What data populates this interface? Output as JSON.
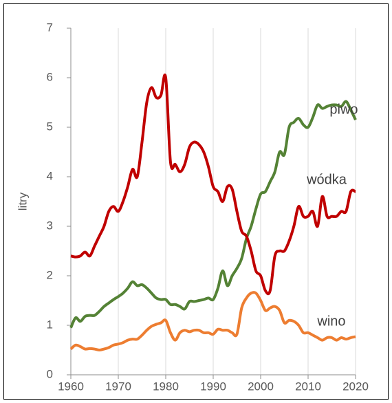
{
  "chart_data": {
    "type": "line",
    "y_label": "litry",
    "x": [
      1960,
      1961,
      1962,
      1963,
      1964,
      1965,
      1966,
      1967,
      1968,
      1969,
      1970,
      1971,
      1972,
      1973,
      1974,
      1975,
      1976,
      1977,
      1978,
      1979,
      1980,
      1981,
      1982,
      1983,
      1984,
      1985,
      1986,
      1987,
      1988,
      1989,
      1990,
      1991,
      1992,
      1993,
      1994,
      1995,
      1996,
      1997,
      1998,
      1999,
      2000,
      2001,
      2002,
      2003,
      2004,
      2005,
      2006,
      2007,
      2008,
      2009,
      2010,
      2011,
      2012,
      2013,
      2014,
      2015,
      2016,
      2017,
      2018,
      2019,
      2020
    ],
    "xlim": [
      1960,
      2020
    ],
    "xticks": [
      1960,
      1970,
      1980,
      1990,
      2000,
      2010,
      2020
    ],
    "ylim": [
      0,
      7
    ],
    "yticks": [
      0,
      1,
      2,
      3,
      4,
      5,
      6,
      7
    ],
    "grid": "x",
    "series": [
      {
        "name": "piwo",
        "color": "#548235",
        "values": [
          0.95,
          1.15,
          1.08,
          1.18,
          1.2,
          1.2,
          1.28,
          1.38,
          1.45,
          1.52,
          1.58,
          1.65,
          1.75,
          1.88,
          1.8,
          1.82,
          1.75,
          1.65,
          1.55,
          1.52,
          1.52,
          1.42,
          1.42,
          1.38,
          1.33,
          1.48,
          1.48,
          1.5,
          1.52,
          1.55,
          1.52,
          1.75,
          2.1,
          1.8,
          2.0,
          2.15,
          2.35,
          2.75,
          3.0,
          3.35,
          3.65,
          3.7,
          3.9,
          4.1,
          4.5,
          4.45,
          5.0,
          5.1,
          5.18,
          5.05,
          5.0,
          5.2,
          5.45,
          5.38,
          5.42,
          5.45,
          5.45,
          5.42,
          5.52,
          5.35,
          5.15
        ]
      },
      {
        "name": "wódka",
        "color": "#c00000",
        "values": [
          2.4,
          2.38,
          2.4,
          2.48,
          2.4,
          2.6,
          2.8,
          3.0,
          3.3,
          3.4,
          3.3,
          3.5,
          3.8,
          4.15,
          4.0,
          4.7,
          5.5,
          5.8,
          5.6,
          5.65,
          6.0,
          4.3,
          4.25,
          4.1,
          4.25,
          4.6,
          4.7,
          4.65,
          4.5,
          4.2,
          3.8,
          3.7,
          3.5,
          3.8,
          3.75,
          3.3,
          2.9,
          2.8,
          2.5,
          2.1,
          2.0,
          1.7,
          1.7,
          2.4,
          2.5,
          2.5,
          2.7,
          3.0,
          3.4,
          3.2,
          3.2,
          3.3,
          3.0,
          3.6,
          3.2,
          3.2,
          3.2,
          3.3,
          3.3,
          3.7,
          3.7
        ]
      },
      {
        "name": "wino",
        "color": "#ed7d31",
        "values": [
          0.52,
          0.6,
          0.57,
          0.52,
          0.53,
          0.52,
          0.5,
          0.52,
          0.55,
          0.6,
          0.62,
          0.65,
          0.7,
          0.72,
          0.72,
          0.8,
          0.9,
          0.98,
          1.02,
          1.05,
          1.1,
          0.85,
          0.7,
          0.85,
          0.9,
          0.87,
          0.9,
          0.9,
          0.85,
          0.85,
          0.82,
          0.92,
          0.9,
          0.9,
          0.85,
          0.82,
          1.35,
          1.55,
          1.65,
          1.65,
          1.5,
          1.3,
          1.35,
          1.38,
          1.3,
          1.05,
          1.1,
          1.08,
          1.0,
          0.85,
          0.85,
          0.8,
          0.75,
          0.7,
          0.75,
          0.75,
          0.7,
          0.75,
          0.72,
          0.75,
          0.77
        ]
      }
    ]
  }
}
